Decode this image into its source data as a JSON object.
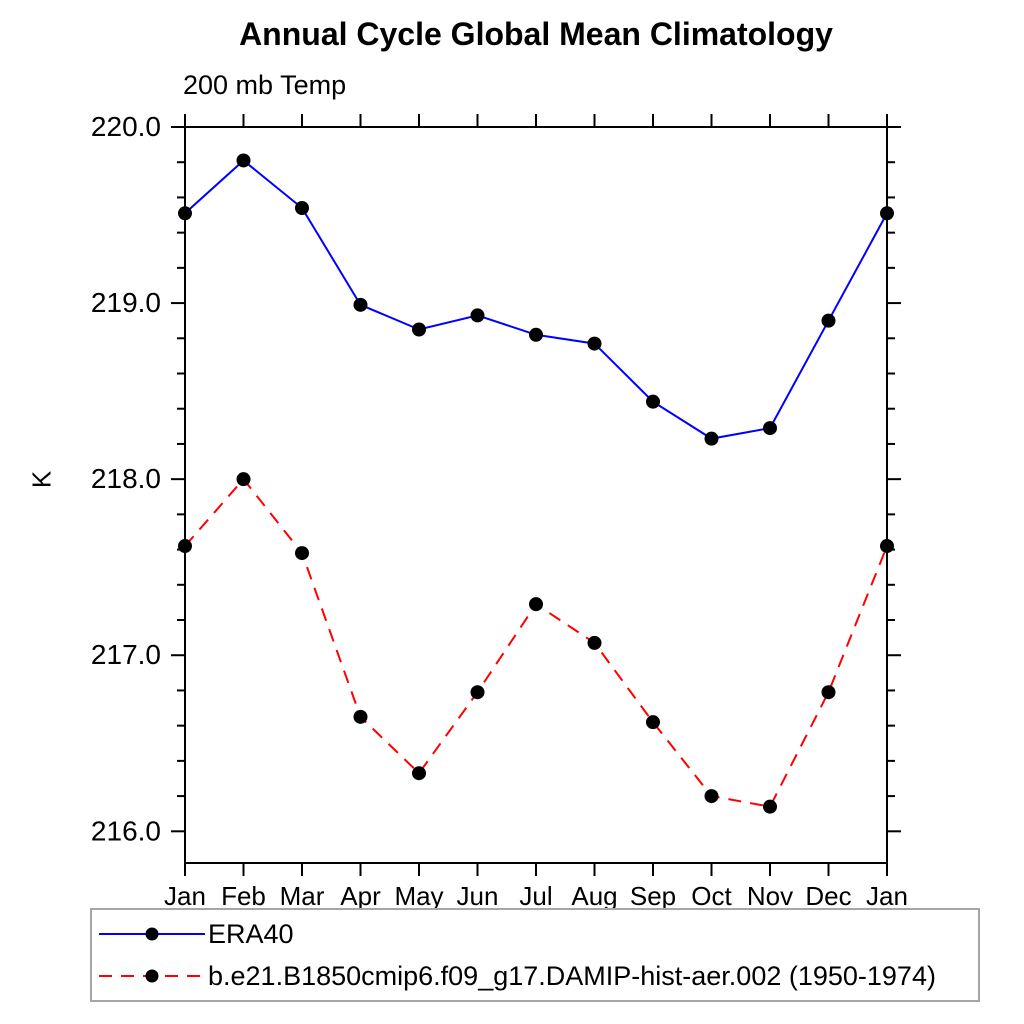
{
  "chart_data": {
    "type": "line",
    "title": "Annual Cycle Global Mean Climatology",
    "subtitle": "200 mb Temp",
    "ylabel": "K",
    "xlabel": "",
    "categories": [
      "Jan",
      "Feb",
      "Mar",
      "Apr",
      "May",
      "Jun",
      "Jul",
      "Aug",
      "Sep",
      "Oct",
      "Nov",
      "Dec",
      "Jan"
    ],
    "ylim": [
      215.82,
      220.0
    ],
    "ytick_major": [
      216.0,
      217.0,
      218.0,
      219.0,
      220.0
    ],
    "ytick_labels": [
      "216.0",
      "217.0",
      "218.0",
      "219.0",
      "220.0"
    ],
    "minor_tick_step": 0.2,
    "grid": false,
    "legend_position": "bottom-left-box",
    "marker": {
      "shape": "circle",
      "color": "#000000"
    },
    "axis_color": "#000000",
    "series": [
      {
        "name": "ERA40",
        "color": "#0000ff",
        "style": "solid",
        "values": [
          219.51,
          219.81,
          219.54,
          218.99,
          218.85,
          218.93,
          218.82,
          218.77,
          218.44,
          218.23,
          218.29,
          218.9,
          219.51
        ]
      },
      {
        "name": "b.e21.B1850cmip6.f09_g17.DAMIP-hist-aer.002 (1950-1974)",
        "color": "#ff0000",
        "style": "dashed",
        "values": [
          217.62,
          218.0,
          217.58,
          216.65,
          216.33,
          216.79,
          217.29,
          217.07,
          216.62,
          216.2,
          216.14,
          216.79,
          217.62
        ]
      }
    ]
  }
}
